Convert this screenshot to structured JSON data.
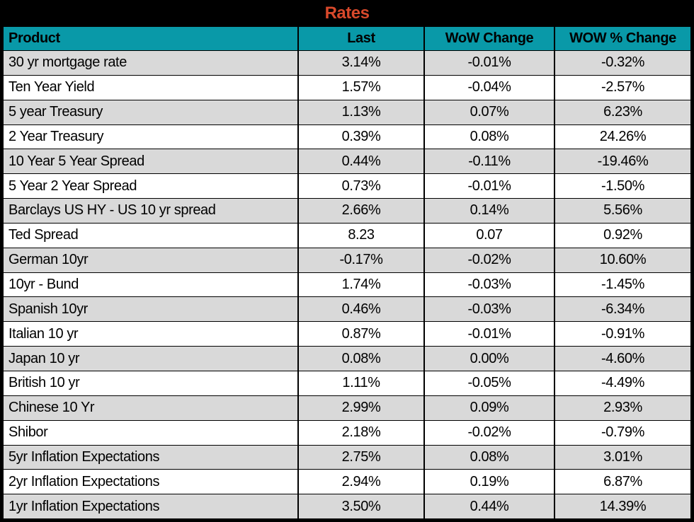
{
  "chart_data": {
    "type": "table",
    "title": "Rates",
    "columns": [
      "Product",
      "Last",
      "WoW Change",
      "WOW % Change"
    ],
    "rows": [
      [
        "30 yr mortgage rate",
        "3.14%",
        "-0.01%",
        "-0.32%"
      ],
      [
        "Ten Year Yield",
        "1.57%",
        "-0.04%",
        "-2.57%"
      ],
      [
        "5 year Treasury",
        "1.13%",
        "0.07%",
        "6.23%"
      ],
      [
        "2 Year Treasury",
        "0.39%",
        "0.08%",
        "24.26%"
      ],
      [
        "10 Year 5 Year Spread",
        "0.44%",
        "-0.11%",
        "-19.46%"
      ],
      [
        "5 Year 2 Year Spread",
        "0.73%",
        "-0.01%",
        "-1.50%"
      ],
      [
        "Barclays US HY - US 10 yr spread",
        "2.66%",
        "0.14%",
        "5.56%"
      ],
      [
        "Ted Spread",
        "8.23",
        "0.07",
        "0.92%"
      ],
      [
        "German 10yr",
        "-0.17%",
        "-0.02%",
        "10.60%"
      ],
      [
        "10yr - Bund",
        "1.74%",
        "-0.03%",
        "-1.45%"
      ],
      [
        "Spanish 10yr",
        "0.46%",
        "-0.03%",
        "-6.34%"
      ],
      [
        "Italian 10 yr",
        "0.87%",
        "-0.01%",
        "-0.91%"
      ],
      [
        "Japan 10 yr",
        "0.08%",
        "0.00%",
        "-4.60%"
      ],
      [
        "British 10 yr",
        "1.11%",
        "-0.05%",
        "-4.49%"
      ],
      [
        "Chinese 10 Yr",
        "2.99%",
        "0.09%",
        "2.93%"
      ],
      [
        "Shibor",
        "2.18%",
        "-0.02%",
        "-0.79%"
      ],
      [
        "5yr Inflation Expectations",
        "2.75%",
        "0.08%",
        "3.01%"
      ],
      [
        "2yr Inflation Expectations",
        "2.94%",
        "0.19%",
        "6.87%"
      ],
      [
        "1yr Inflation Expectations",
        "3.50%",
        "0.44%",
        "14.39%"
      ]
    ],
    "layout_hints": {
      "striped_rows": true,
      "first_data_row_shaded": true,
      "numeric_columns_centered": true
    }
  },
  "colors": {
    "title_bg": "#000000",
    "title_text": "#d8492b",
    "header_bg": "#0999a8",
    "header_text": "#000000",
    "row_alt_bg": "#d9d9d9",
    "row_bg": "#ffffff",
    "grid_border": "#000000"
  }
}
